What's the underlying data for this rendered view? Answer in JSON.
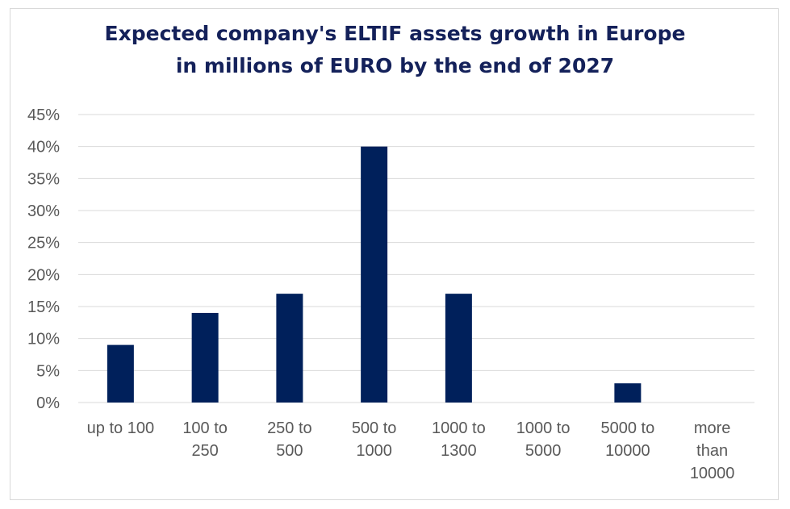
{
  "chart_data": {
    "type": "bar",
    "title_lines": [
      "Expected company's ELTIF assets growth in Europe",
      "in millions of EURO by the end of 2027"
    ],
    "categories": [
      [
        "up to 100"
      ],
      [
        "100 to",
        "250"
      ],
      [
        "250 to",
        "500"
      ],
      [
        "500 to",
        "1000"
      ],
      [
        "1000 to",
        "1300"
      ],
      [
        "1000 to",
        "5000"
      ],
      [
        "5000 to",
        "10000"
      ],
      [
        "more",
        "than",
        "10000"
      ]
    ],
    "values": [
      9,
      14,
      17,
      40,
      17,
      0,
      3,
      0
    ],
    "y_ticks": [
      "0%",
      "5%",
      "10%",
      "15%",
      "20%",
      "25%",
      "30%",
      "35%",
      "40%",
      "45%"
    ],
    "ylim": [
      0,
      45
    ],
    "y_unit": "%",
    "grid": true,
    "bar_color": "#00205b",
    "grid_color": "#d9d9d9"
  }
}
